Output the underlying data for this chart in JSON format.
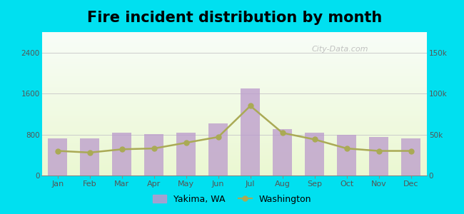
{
  "title": "Fire incident distribution by month",
  "months": [
    "Jan",
    "Feb",
    "Mar",
    "Apr",
    "May",
    "Jun",
    "Jul",
    "Aug",
    "Sep",
    "Oct",
    "Nov",
    "Dec"
  ],
  "yakima_values": [
    720,
    720,
    830,
    810,
    830,
    1020,
    1700,
    900,
    830,
    800,
    750,
    730
  ],
  "washington_values_right": [
    30000,
    28000,
    32000,
    33000,
    40000,
    47000,
    85000,
    52000,
    44000,
    33000,
    30000,
    30000
  ],
  "bar_color": "#bb99cc",
  "bar_alpha": 0.75,
  "line_color": "#aaaa55",
  "line_marker": "o",
  "line_marker_color": "#aaaa55",
  "bg_color_outer": "#00e0f0",
  "ylim_left": [
    0,
    2800
  ],
  "ylim_right": [
    0,
    175000
  ],
  "yticks_left": [
    0,
    800,
    1600,
    2400
  ],
  "yticks_right": [
    0,
    50000,
    100000,
    150000
  ],
  "ytick_labels_right": [
    "0",
    "50k",
    "100k",
    "150k"
  ],
  "title_fontsize": 15,
  "legend_yakima": "Yakima, WA",
  "legend_washington": "Washington",
  "watermark": "City-Data.com"
}
